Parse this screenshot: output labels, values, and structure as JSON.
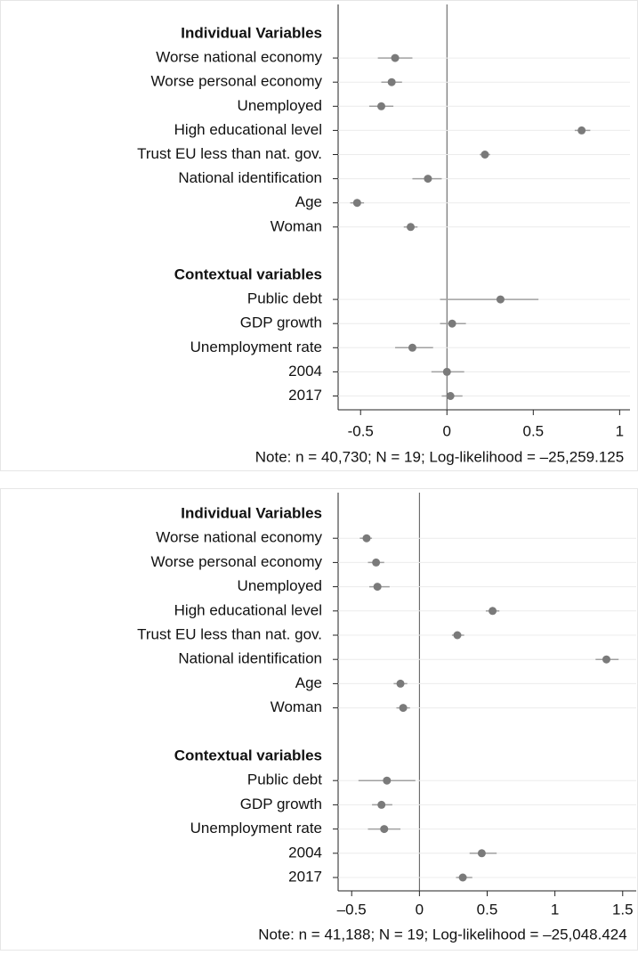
{
  "chart_data": [
    {
      "type": "coefficient",
      "categories": [
        "Individual Variables",
        "Worse national economy",
        "Worse personal economy",
        "Unemployed",
        "High educational level",
        "Trust EU less than nat. gov.",
        "National identification",
        "Age",
        "Woman",
        null,
        "Contextual variables",
        "Public debt",
        "GDP growth",
        "Unemployment rate",
        "2004",
        "2017"
      ],
      "values": [
        null,
        -0.3,
        -0.32,
        -0.38,
        0.78,
        0.22,
        -0.11,
        -0.52,
        -0.21,
        null,
        null,
        0.31,
        0.03,
        -0.2,
        0.0,
        0.02
      ],
      "lower": [
        null,
        -0.4,
        -0.38,
        -0.45,
        0.74,
        0.19,
        -0.2,
        -0.56,
        -0.25,
        null,
        null,
        -0.04,
        -0.04,
        -0.3,
        -0.09,
        -0.03
      ],
      "upper": [
        null,
        -0.2,
        -0.26,
        -0.31,
        0.83,
        0.25,
        -0.03,
        -0.48,
        -0.17,
        null,
        null,
        0.53,
        0.11,
        -0.08,
        0.1,
        0.09
      ],
      "xlim": [
        -0.63,
        1.06
      ],
      "xticks": [
        -0.5,
        0,
        0.5,
        1
      ],
      "note": "Note: n = 40,730; N = 19; Log-likelihood = –25,259.125",
      "color": "#7a7a7a",
      "ci_color": "#a0a0a0",
      "grid": true
    },
    {
      "type": "coefficient",
      "categories": [
        "Individual Variables",
        "Worse national economy",
        "Worse personal economy",
        "Unemployed",
        "High educational level",
        "Trust EU less than nat. gov.",
        "National identification",
        "Age",
        "Woman",
        null,
        "Contextual variables",
        "Public debt",
        "GDP growth",
        "Unemployment rate",
        "2004",
        "2017"
      ],
      "values": [
        null,
        -0.39,
        -0.32,
        -0.31,
        0.54,
        0.28,
        1.38,
        -0.14,
        -0.12,
        null,
        null,
        -0.24,
        -0.28,
        -0.26,
        0.46,
        0.32
      ],
      "lower": [
        null,
        -0.44,
        -0.38,
        -0.37,
        0.49,
        0.24,
        1.3,
        -0.19,
        -0.17,
        null,
        null,
        -0.45,
        -0.35,
        -0.38,
        0.37,
        0.27
      ],
      "upper": [
        null,
        -0.35,
        -0.26,
        -0.22,
        0.59,
        0.33,
        1.47,
        -0.09,
        -0.07,
        null,
        null,
        -0.03,
        -0.2,
        -0.14,
        0.57,
        0.39
      ],
      "xlim": [
        -0.6,
        1.6
      ],
      "xticks": [
        {
          "value": -0.5,
          "label": "–0.5"
        },
        0,
        0.5,
        1,
        1.5
      ],
      "note": "Note: n = 41,188; N = 19; Log-likelihood = –25,048.424",
      "color": "#7a7a7a",
      "ci_color": "#a0a0a0",
      "grid": true
    }
  ]
}
